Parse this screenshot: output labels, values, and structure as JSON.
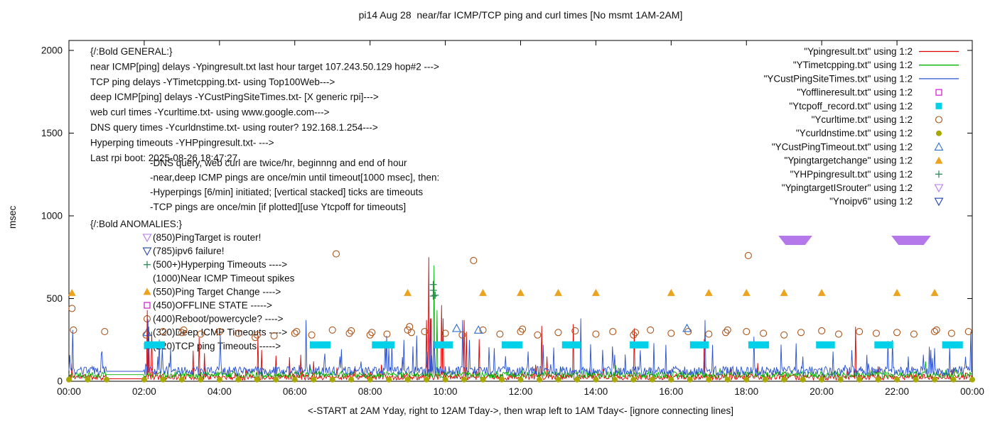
{
  "title": "pi14 Aug 28  near/far ICMP/TCP ping and curl times [No msmt 1AM-2AM]",
  "axes": {
    "ylabel": "msec",
    "xlabel": "<-START at 2AM Yday, right to 12AM Tday->, then wrap left to 1AM Tday<- [ignore connecting lines]",
    "y_ticks": [
      0,
      500,
      1000,
      1500,
      2000
    ],
    "x_ticks": [
      "00:00",
      "02:00",
      "04:00",
      "06:00",
      "08:00",
      "10:00",
      "12:00",
      "14:00",
      "16:00",
      "18:00",
      "20:00",
      "22:00",
      "00:00"
    ],
    "y_max": 2000,
    "x_hours": 24
  },
  "annotations": {
    "general": [
      "{/:Bold GENERAL:}",
      "near ICMP[ping] delays -Ypingresult.txt last hour target 107.243.50.129 hop#2 --->",
      "TCP ping delays -YTimetcpping.txt- using Top100Web--->",
      "deep ICMP[ping] delays -YCustPingSiteTimes.txt- [X generic rpi]--->",
      "web curl times -Ycurltime.txt- using www.google.com--->",
      "DNS query times -Ycurldnstime.txt- using router? 192.168.1.254--->",
      "Hyperping timeouts -YHPpingresult.txt- --->",
      "Last rpi boot: 2025-08-26 18:47:27"
    ],
    "general_indented": [
      "-DNS query, web curl are twice/hr, beginnng and end of hour",
      "-near,deep ICMP pings are once/min until timeout[1000 msec], then:",
      "-Hyperpings [6/min] initiated; [vertical stacked] ticks are timeouts",
      "-TCP pings are once/min [if plotted][use Ytcpoff for timeouts]"
    ],
    "anomalies_header": "{/:Bold ANOMALIES:}",
    "anomalies": [
      {
        "marker": "triangle-down-open",
        "color": "#b478ea",
        "text": "(850)PingTarget is router!"
      },
      {
        "marker": "triangle-down-open",
        "color": "#2244aa",
        "text": "(785)ipv6 failure!"
      },
      {
        "marker": "plus",
        "color": "#2e8b57",
        "text": "(500+)Hyperping Timeouts ---->"
      },
      {
        "marker": "none",
        "color": "",
        "text": "(1000)Near ICMP Timeout spikes"
      },
      {
        "marker": "triangle-up-fill",
        "color": "#eca31d",
        "text": "(550)Ping Target Change ---->"
      },
      {
        "marker": "square-open",
        "color": "#cc00cc",
        "text": "(450)OFFLINE STATE ----->"
      },
      {
        "marker": "circle-open",
        "color": "#ad5318",
        "text": "(400)Reboot/powercycle? ---->"
      },
      {
        "marker": "triangle-up-open",
        "color": "#2e6fce",
        "text": "(320)Deep ICMP Timeouts ---->"
      },
      {
        "marker": "square-fill",
        "color": "#00d0e8",
        "text": "(220)TCP ping Timeouts ----->"
      }
    ]
  },
  "legend": [
    {
      "label": "\"Ypingresult.txt\" using 1:2",
      "sample": "line",
      "color": "#e00000"
    },
    {
      "label": "\"YTimetcpping.txt\" using 1:2",
      "sample": "line",
      "color": "#00b000"
    },
    {
      "label": "\"YCustPingSiteTimes.txt\" using 1:2",
      "sample": "line",
      "color": "#2850d0"
    },
    {
      "label": "\"Yofflineresult.txt\" using 1:2",
      "sample": "square-open",
      "color": "#cc00cc"
    },
    {
      "label": "\"Ytcpoff_record.txt\" using 1:2",
      "sample": "square-fill",
      "color": "#00d0e8"
    },
    {
      "label": "\"Ycurltime.txt\" using 1:2",
      "sample": "circle-open",
      "color": "#ad5318"
    },
    {
      "label": "\"Ycurldnstime.txt\" using 1:2",
      "sample": "circle-fill",
      "color": "#a8a800"
    },
    {
      "label": "\"YCustPingTimeout.txt\" using 1:2",
      "sample": "triangle-up-open",
      "color": "#2e6fce"
    },
    {
      "label": "\"Ypingtargetchange\" using 1:2",
      "sample": "triangle-up-fill",
      "color": "#eca31d"
    },
    {
      "label": "\"YHPpingresult.txt\" using 1:2",
      "sample": "plus",
      "color": "#2e8b57"
    },
    {
      "label": "\"YpingtargetISrouter\" using 1:2",
      "sample": "triangle-down-open",
      "color": "#b478ea"
    },
    {
      "label": "\"Ynoipv6\" using 1:2",
      "sample": "triangle-down-open",
      "color": "#2244aa"
    }
  ],
  "chart_data": {
    "type": "line",
    "x_unit": "hours-of-day",
    "x_range": [
      0,
      24
    ],
    "y_range": [
      0,
      2000
    ],
    "no_measurement_gap": [
      1,
      2
    ],
    "series": [
      {
        "name": "Ypingresult.txt",
        "style": "line",
        "color": "#e00000",
        "seed": 11,
        "baseline": {
          "min": 8,
          "max": 45
        },
        "burst": {
          "chance": 0.02,
          "max": 60
        },
        "gap_value": 15,
        "spikes": [
          [
            0.07,
            110
          ],
          [
            2.08,
            430
          ],
          [
            2.12,
            330
          ],
          [
            2.2,
            300
          ],
          [
            3.3,
            185
          ],
          [
            3.45,
            265
          ],
          [
            3.6,
            170
          ],
          [
            5.02,
            275
          ],
          [
            5.12,
            190
          ],
          [
            5.5,
            155
          ],
          [
            5.85,
            145
          ],
          [
            6.15,
            160
          ],
          [
            6.5,
            120
          ],
          [
            7.6,
            90
          ],
          [
            8.3,
            100
          ],
          [
            9.5,
            370
          ],
          [
            9.55,
            750
          ],
          [
            9.62,
            380
          ],
          [
            9.9,
            460
          ],
          [
            9.95,
            380
          ],
          [
            10.5,
            370
          ],
          [
            10.55,
            300
          ],
          [
            10.9,
            255
          ],
          [
            12.4,
            100
          ],
          [
            12.55,
            335
          ],
          [
            12.7,
            150
          ],
          [
            13.4,
            345
          ],
          [
            14.2,
            90
          ],
          [
            15.02,
            320
          ],
          [
            16.88,
            255
          ],
          [
            18.3,
            110
          ],
          [
            20.9,
            330
          ],
          [
            21.5,
            90
          ],
          [
            23.5,
            80
          ]
        ]
      },
      {
        "name": "YTimetcpping.txt",
        "style": "line",
        "color": "#00b000",
        "seed": 22,
        "baseline": {
          "min": 20,
          "max": 60
        },
        "burst": {
          "chance": 0.012,
          "max": 45
        },
        "gap_value": 40,
        "spikes": [
          [
            6.4,
            95
          ],
          [
            9.7,
            700
          ],
          [
            9.78,
            430
          ],
          [
            13.05,
            90
          ],
          [
            17.3,
            80
          ],
          [
            22.75,
            120
          ]
        ]
      },
      {
        "name": "YCustPingSiteTimes.txt",
        "style": "line",
        "color": "#2850d0",
        "seed": 33,
        "baseline": {
          "min": 35,
          "max": 90
        },
        "burst": {
          "chance": 0.05,
          "max": 200
        },
        "gap_value": 60,
        "spikes": [
          [
            0.1,
            310
          ],
          [
            2.1,
            375
          ],
          [
            2.35,
            150
          ],
          [
            4.0,
            120
          ],
          [
            6.3,
            370
          ],
          [
            7.2,
            150
          ],
          [
            8.5,
            200
          ],
          [
            8.9,
            250
          ],
          [
            9.6,
            380
          ],
          [
            10.45,
            370
          ],
          [
            11.3,
            200
          ],
          [
            12.2,
            180
          ],
          [
            13.6,
            380
          ],
          [
            14.5,
            160
          ],
          [
            16.9,
            370
          ],
          [
            17.1,
            220
          ],
          [
            18.2,
            270
          ],
          [
            19.5,
            150
          ],
          [
            20.3,
            180
          ],
          [
            21.2,
            160
          ],
          [
            22.3,
            150
          ],
          [
            23.0,
            200
          ],
          [
            23.95,
            300
          ]
        ]
      },
      {
        "name": "Yofflineresult.txt",
        "style": "points",
        "marker": "square-open",
        "color": "#cc00cc",
        "points": []
      },
      {
        "name": "Ytcpoff_record.txt",
        "style": "bars",
        "color": "#00d0e8",
        "y": 220,
        "ranges": [
          [
            2.0,
            2.55
          ],
          [
            6.4,
            6.95
          ],
          [
            8.05,
            8.65
          ],
          [
            9.7,
            10.2
          ],
          [
            11.5,
            12.05
          ],
          [
            13.1,
            13.6
          ],
          [
            14.9,
            15.4
          ],
          [
            16.5,
            17.0
          ],
          [
            18.05,
            18.6
          ],
          [
            19.85,
            20.35
          ],
          [
            21.4,
            21.9
          ],
          [
            23.2,
            23.75
          ]
        ]
      },
      {
        "name": "Ycurltime.txt",
        "style": "points",
        "marker": "circle-open",
        "color": "#ad5318",
        "points": [
          [
            0.08,
            440
          ],
          [
            0.12,
            310
          ],
          [
            0.95,
            300
          ],
          [
            2.05,
            280
          ],
          [
            2.5,
            300
          ],
          [
            3.0,
            295
          ],
          [
            3.05,
            310
          ],
          [
            3.5,
            285
          ],
          [
            4.0,
            300
          ],
          [
            4.5,
            290
          ],
          [
            4.95,
            265
          ],
          [
            5.0,
            280
          ],
          [
            5.45,
            275
          ],
          [
            6.0,
            290
          ],
          [
            6.05,
            300
          ],
          [
            6.45,
            280
          ],
          [
            7.0,
            310
          ],
          [
            7.1,
            770
          ],
          [
            7.45,
            290
          ],
          [
            7.5,
            305
          ],
          [
            8.0,
            280
          ],
          [
            8.05,
            295
          ],
          [
            8.45,
            285
          ],
          [
            9.0,
            310
          ],
          [
            9.05,
            330
          ],
          [
            9.1,
            295
          ],
          [
            9.45,
            300
          ],
          [
            10.0,
            290
          ],
          [
            10.45,
            280
          ],
          [
            10.75,
            730
          ],
          [
            11.0,
            310
          ],
          [
            11.45,
            285
          ],
          [
            12.0,
            300
          ],
          [
            12.05,
            315
          ],
          [
            12.45,
            280
          ],
          [
            13.0,
            295
          ],
          [
            13.45,
            305
          ],
          [
            14.0,
            285
          ],
          [
            14.45,
            300
          ],
          [
            15.0,
            280
          ],
          [
            15.05,
            295
          ],
          [
            15.45,
            310
          ],
          [
            16.0,
            290
          ],
          [
            16.45,
            300
          ],
          [
            17.0,
            285
          ],
          [
            17.45,
            295
          ],
          [
            17.5,
            310
          ],
          [
            18.0,
            300
          ],
          [
            18.05,
            760
          ],
          [
            18.45,
            290
          ],
          [
            19.0,
            280
          ],
          [
            19.45,
            295
          ],
          [
            20.0,
            305
          ],
          [
            20.45,
            285
          ],
          [
            21.0,
            300
          ],
          [
            21.45,
            290
          ],
          [
            22.0,
            295
          ],
          [
            22.45,
            285
          ],
          [
            23.0,
            300
          ],
          [
            23.05,
            310
          ],
          [
            23.45,
            290
          ],
          [
            23.9,
            300
          ]
        ]
      },
      {
        "name": "Ycurldnstime.txt",
        "style": "points",
        "marker": "circle-fill",
        "color": "#a8a800",
        "pattern": {
          "start": 0,
          "end": 24,
          "step": 0.5,
          "y": 10,
          "skip": [
            1,
            2
          ]
        },
        "points": []
      },
      {
        "name": "YCustPingTimeout.txt",
        "style": "points",
        "marker": "triangle-up-open",
        "color": "#2e6fce",
        "points": [
          [
            10.3,
            320
          ],
          [
            10.88,
            310
          ],
          [
            16.42,
            320
          ]
        ]
      },
      {
        "name": "Ypingtargetchange",
        "style": "points",
        "marker": "triangle-up-fill",
        "color": "#eca31d",
        "y": 535,
        "hours": [
          0.08,
          9.0,
          11.0,
          12.0,
          13.0,
          14.0,
          16.0,
          17.0,
          18.0,
          19.0,
          20.0,
          22.0,
          23.0
        ],
        "points": []
      },
      {
        "name": "YHPpingresult.txt",
        "style": "points",
        "marker": "plus",
        "color": "#2e8b57",
        "points": [
          [
            9.68,
            515
          ],
          [
            9.68,
            550
          ],
          [
            9.68,
            585
          ],
          [
            9.73,
            520
          ]
        ]
      },
      {
        "name": "YpingtargetISrouter",
        "style": "bands",
        "color": "#b478ea",
        "y": 850,
        "ranges": [
          [
            18.85,
            19.75
          ],
          [
            21.85,
            22.9
          ]
        ]
      },
      {
        "name": "Ynoipv6",
        "style": "points",
        "marker": "triangle-down-open",
        "color": "#2244aa",
        "points": []
      }
    ]
  }
}
